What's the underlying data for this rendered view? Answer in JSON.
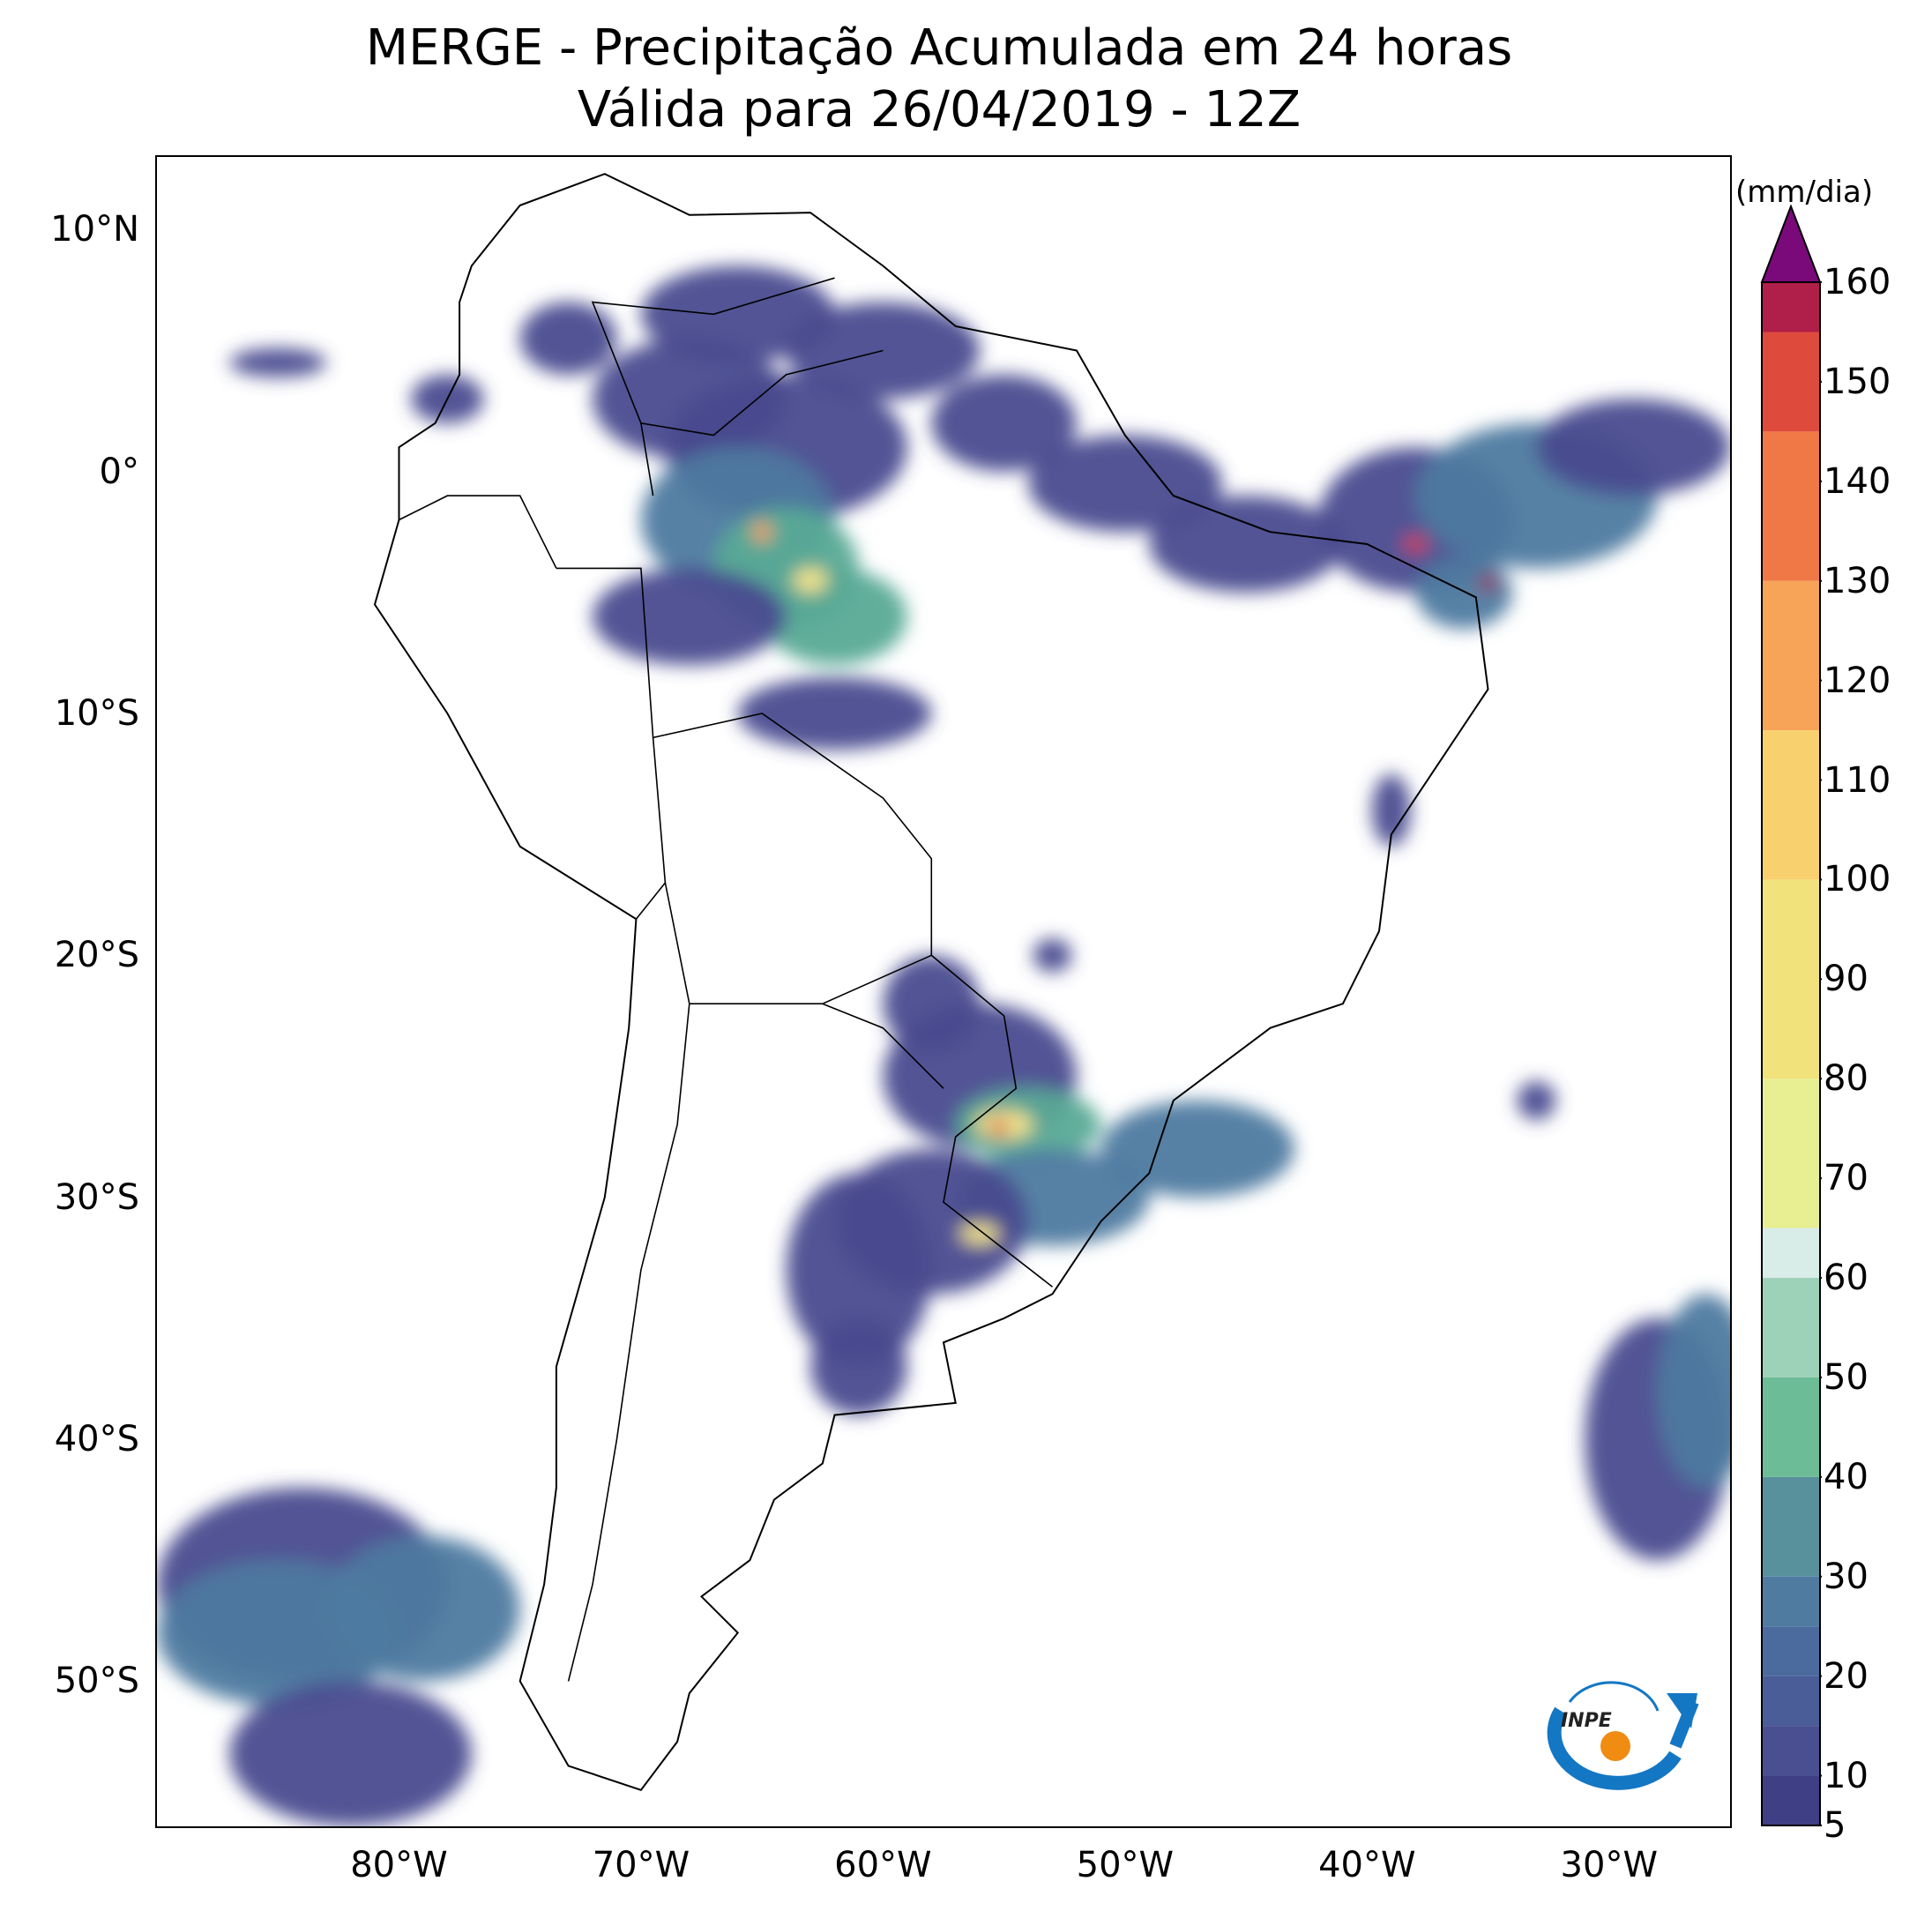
{
  "title": {
    "line1": "MERGE - Precipitação Acumulada em 24 horas",
    "line2": "Válida para 26/04/2019 - 12Z"
  },
  "map": {
    "extent": {
      "lon_min": -90,
      "lon_max": -25,
      "lat_min": -56,
      "lat_max": 13
    },
    "lat_ticks": [
      {
        "value": 10,
        "label": "10°N"
      },
      {
        "value": 0,
        "label": "0°"
      },
      {
        "value": -10,
        "label": "10°S"
      },
      {
        "value": -20,
        "label": "20°S"
      },
      {
        "value": -30,
        "label": "30°S"
      },
      {
        "value": -40,
        "label": "40°S"
      },
      {
        "value": -50,
        "label": "50°S"
      }
    ],
    "lon_ticks": [
      {
        "value": -80,
        "label": "80°W"
      },
      {
        "value": -70,
        "label": "70°W"
      },
      {
        "value": -60,
        "label": "60°W"
      },
      {
        "value": -50,
        "label": "50°W"
      },
      {
        "value": -40,
        "label": "40°W"
      },
      {
        "value": -30,
        "label": "30°W"
      }
    ],
    "precip_colors": {
      "low": "#4a4b8f",
      "mid": "#4e7aa0",
      "teal": "#5aaa96",
      "light": "#cde8df",
      "yellow": "#f4e58a",
      "orange": "#f7a158",
      "red": "#d63a3f",
      "maroon": "#9a1049"
    }
  },
  "colorbar": {
    "unit": "(mm/dia)",
    "min": 5,
    "max": 160,
    "tick_labels": [
      "5",
      "10",
      "20",
      "30",
      "40",
      "50",
      "60",
      "70",
      "80",
      "90",
      "100",
      "110",
      "120",
      "130",
      "140",
      "150",
      "160"
    ],
    "extend_color": "#7a0a7a",
    "stops": [
      {
        "value": 5,
        "color": "#3f3f85"
      },
      {
        "value": 10,
        "color": "#494f90"
      },
      {
        "value": 15,
        "color": "#4a5d99"
      },
      {
        "value": 20,
        "color": "#4b6b9f"
      },
      {
        "value": 25,
        "color": "#4f7ba0"
      },
      {
        "value": 30,
        "color": "#58909c"
      },
      {
        "value": 40,
        "color": "#6cbc97"
      },
      {
        "value": 50,
        "color": "#9ed2b8"
      },
      {
        "value": 60,
        "color": "#d8ece8"
      },
      {
        "value": 65,
        "color": "#e8ef92"
      },
      {
        "value": 80,
        "color": "#f2e27c"
      },
      {
        "value": 100,
        "color": "#f9d06e"
      },
      {
        "value": 115,
        "color": "#f7a458"
      },
      {
        "value": 130,
        "color": "#f07846"
      },
      {
        "value": 145,
        "color": "#de4a3c"
      },
      {
        "value": 160,
        "color": "#b01f49"
      }
    ]
  },
  "logo": {
    "text": "INPE"
  }
}
